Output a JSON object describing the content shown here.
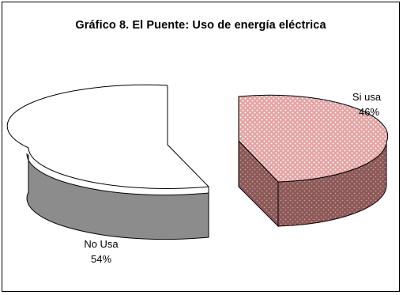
{
  "chart_data": {
    "type": "pie",
    "title": "Gráfico 8. El Puente: Uso de energía eléctrica",
    "slices": [
      {
        "label": "No Usa",
        "percent_label": "54%",
        "value": 54,
        "color": "#ffffff",
        "side_color": "#8a8a8a",
        "pattern": "none"
      },
      {
        "label": "Si usa",
        "percent_label": "46%",
        "value": 46,
        "color": "#e8a0a0",
        "side_color": "#8b5a5a",
        "pattern": "dotted"
      }
    ],
    "style": "3d-exploded"
  }
}
